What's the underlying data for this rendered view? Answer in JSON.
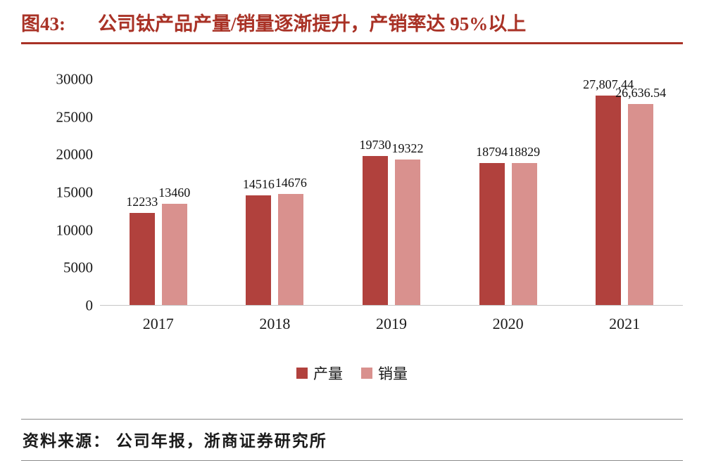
{
  "header": {
    "figure_label": "图43:",
    "title": "公司钛产品产量/销量逐渐提升，产销率达 95%以上"
  },
  "footer": {
    "source": "资料来源： 公司年报，浙商证券研究所"
  },
  "colors": {
    "accent_red": "#a93226",
    "production_bar": "#b1413d",
    "sales_bar": "#d9918e",
    "axis_line": "#c6c6c6"
  },
  "chart_data": {
    "type": "bar",
    "categories": [
      "2017",
      "2018",
      "2019",
      "2020",
      "2021"
    ],
    "series": [
      {
        "name": "产量",
        "color": "#b1413d",
        "values": [
          12233,
          14516,
          19730,
          18794,
          27807.44
        ],
        "labels": [
          "12233",
          "14516",
          "19730",
          "18794",
          "27,807.44"
        ]
      },
      {
        "name": "销量",
        "color": "#d9918e",
        "values": [
          13460,
          14676,
          19322,
          18829,
          26636.54
        ],
        "labels": [
          "13460",
          "14676",
          "19322",
          "18829",
          "26,636.54"
        ]
      }
    ],
    "title": "公司钛产品产量/销量逐渐提升，产销率达 95%以上",
    "xlabel": "",
    "ylabel": "",
    "ylim": [
      0,
      30000
    ],
    "yticks": [
      0,
      5000,
      10000,
      15000,
      20000,
      25000,
      30000
    ],
    "grid": false,
    "legend_position": "bottom"
  }
}
